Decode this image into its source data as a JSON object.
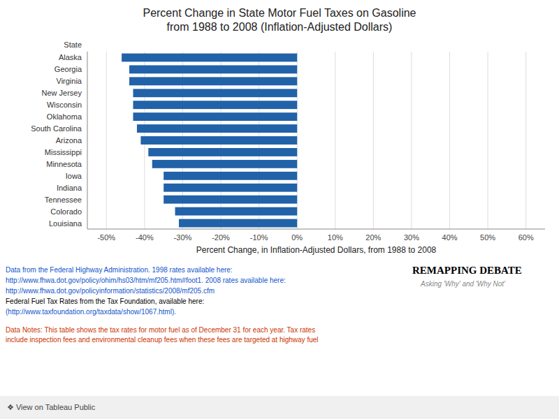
{
  "chart_data": {
    "type": "bar",
    "orientation": "horizontal",
    "title": "Percent Change in State Motor Fuel Taxes on Gasoline\nfrom 1988 to 2008 (Inflation-Adjusted Dollars)",
    "xlabel": "Percent Change, in Inflation-Adjusted Dollars, from 1988 to 2008",
    "ylabel": "State",
    "categories": [
      "Alaska",
      "Georgia",
      "Virginia",
      "New Jersey",
      "Wisconsin",
      "Oklahoma",
      "South Carolina",
      "Arizona",
      "Mississippi",
      "Minnesota",
      "Iowa",
      "Indiana",
      "Tennessee",
      "Colorado",
      "Louisiana"
    ],
    "values": [
      -46,
      -44,
      -44,
      -43,
      -43,
      -43,
      -42,
      -41,
      -39,
      -38,
      -35,
      -35,
      -35,
      -32,
      -31
    ],
    "color": "#2162A8",
    "xlim": [
      -55,
      65
    ],
    "xticks": [
      {
        "value": -50,
        "label": "-50%"
      },
      {
        "value": -40,
        "label": "-40%"
      },
      {
        "value": -30,
        "label": "-30%"
      },
      {
        "value": -20,
        "label": "-20%"
      },
      {
        "value": -10,
        "label": "-10%"
      },
      {
        "value": 0,
        "label": "0%"
      },
      {
        "value": 10,
        "label": "10%"
      },
      {
        "value": 20,
        "label": "20%"
      },
      {
        "value": 30,
        "label": "30%"
      },
      {
        "value": 40,
        "label": "40%"
      },
      {
        "value": 50,
        "label": "50%"
      },
      {
        "value": 60,
        "label": "60%"
      }
    ],
    "grid": true,
    "annotations": [
      {
        "text": "Data from the Federal Highway Administration. 1998 rates available here:",
        "color": "#1155CC"
      },
      {
        "text": "http://www.fhwa.dot.gov/policy/ohim/hs03/htm/mf205.htm#foot1. 2008 rates available here:",
        "color": "#1155CC"
      },
      {
        "text": "http://www.fhwa.dot.gov/policyinformation/statistics/2008/mf205.cfm",
        "color": "#1155CC"
      },
      {
        "text": "Federal Fuel Tax Rates from the Tax Foundation, available here:",
        "color": "#000000"
      },
      {
        "text": "(http://www.taxfoundation.org/taxdata/show/1067.html).",
        "color": "#1155CC"
      },
      {
        "text": "REMAPPING DEBATE",
        "color": "#000000"
      },
      {
        "text": "Asking 'Why' and 'Why Not'",
        "color": "#888888"
      },
      {
        "text": "Data Notes: This table shows the tax rates for motor fuel as of December 31 for each year. Tax rates\ninclude inspection fees and environmental cleanup fees when these fees are targeted at highway fuel",
        "color": "#CC3300"
      },
      {
        "text": "❖ View on Tableau Public",
        "color": "#444444"
      }
    ]
  }
}
